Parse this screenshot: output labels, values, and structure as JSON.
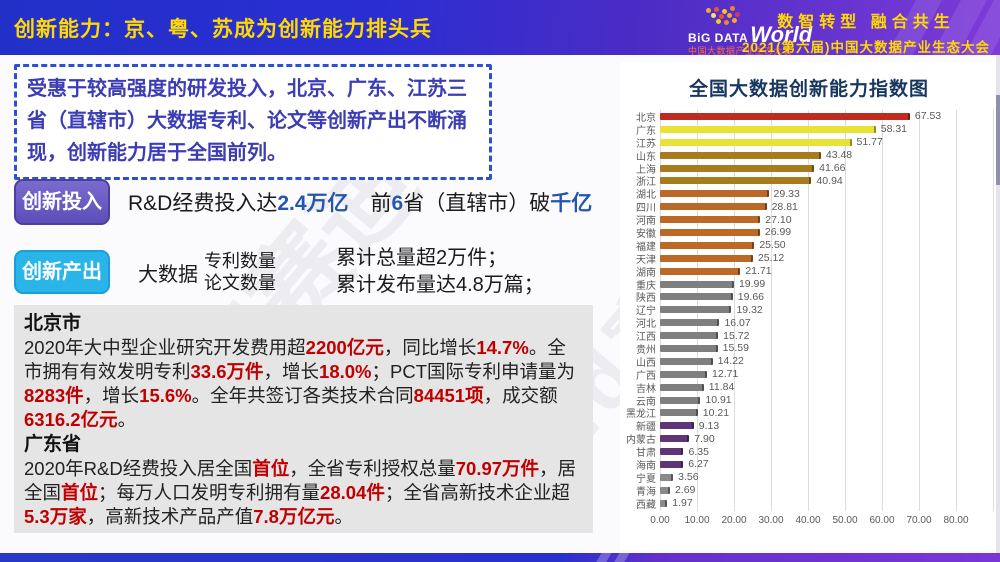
{
  "header": {
    "title": "创新能力：京、粤、苏成为创新能力排头兵",
    "logo_big": "BiG DATA",
    "logo_world": "World",
    "logo_sub": "中国大数据产业生态大会",
    "slogan1": "数智转型 融合共生",
    "slogan2": "2021(第六届)中国大数据产业生态大会"
  },
  "intro": {
    "text": "受惠于较高强度的研发投入，北京、广东、江苏三省（直辖市）大数据专利、论文等创新产出不断涌现，创新能力居于全国前列。"
  },
  "invest": {
    "badge": "创新投入",
    "part1": [
      {
        "t": "R&D经费投入达"
      },
      {
        "t": "2.4万亿",
        "em": true
      }
    ],
    "part2": [
      {
        "t": "前"
      },
      {
        "t": "6",
        "em": true
      },
      {
        "t": "省（直辖市）破"
      },
      {
        "t": "千亿",
        "em": true
      }
    ]
  },
  "output": {
    "badge": "创新产出",
    "label": "大数据",
    "items": [
      "专利数量",
      "论文数量"
    ],
    "results": [
      "累计总量超2万件；",
      "累计发布量达4.8万篇；"
    ]
  },
  "regions": [
    {
      "heading": "北京市",
      "segments": [
        {
          "t": "2020年大中型企业研究开发费用超"
        },
        {
          "t": "2200亿元",
          "em": true
        },
        {
          "t": "，同比增长"
        },
        {
          "t": "14.7%",
          "em": true
        },
        {
          "t": "。全市拥有有效发明专利"
        },
        {
          "t": "33.6万件",
          "em": true
        },
        {
          "t": "，增长"
        },
        {
          "t": "18.0%",
          "em": true
        },
        {
          "t": "；PCT国际专利申请量为"
        },
        {
          "t": "8283件",
          "em": true
        },
        {
          "t": "，增长"
        },
        {
          "t": "15.6%",
          "em": true
        },
        {
          "t": "。全年共签订各类技术合同"
        },
        {
          "t": "84451项",
          "em": true
        },
        {
          "t": "，成交额"
        },
        {
          "t": "6316.2亿元",
          "em": true
        },
        {
          "t": "。"
        }
      ]
    },
    {
      "heading": "广东省",
      "segments": [
        {
          "t": "2020年R&D经费投入居全国"
        },
        {
          "t": "首位",
          "em": true
        },
        {
          "t": "，全省专利授权总量"
        },
        {
          "t": "70.97万件",
          "em": true
        },
        {
          "t": "，居全国"
        },
        {
          "t": "首位",
          "em": true
        },
        {
          "t": "；每万人口发明专利拥有量"
        },
        {
          "t": "28.04件",
          "em": true
        },
        {
          "t": "；全省高新技术企业超"
        },
        {
          "t": "5.3万家",
          "em": true
        },
        {
          "t": "，高新技术产品产值"
        },
        {
          "t": "7.8万亿元",
          "em": true
        },
        {
          "t": "。"
        }
      ]
    }
  ],
  "watermark": "ccid赛迪",
  "colors": {
    "title_yellow": "#ffd902",
    "intro_blue": "#3c3cb4",
    "em_blue": "#2456b0",
    "em_red": "#c00000",
    "badge_purple": "#5b4eb8",
    "badge_cyan": "#29b5e8"
  },
  "chart_data": {
    "type": "bar",
    "orientation": "horizontal",
    "title": "全国大数据创新能力指数图",
    "xlabel": "",
    "ylabel": "",
    "xlim": [
      0,
      80
    ],
    "grid": true,
    "x_ticks": [
      "0.00",
      "10.00",
      "20.00",
      "30.00",
      "40.00",
      "50.00",
      "60.00",
      "70.00",
      "80.00"
    ],
    "categories": [
      "北京",
      "广东",
      "江苏",
      "山东",
      "上海",
      "浙江",
      "湖北",
      "四川",
      "河南",
      "安徽",
      "福建",
      "天津",
      "湖南",
      "重庆",
      "陕西",
      "辽宁",
      "河北",
      "江西",
      "贵州",
      "山西",
      "广西",
      "吉林",
      "云南",
      "黑龙江",
      "新疆",
      "内蒙古",
      "甘肃",
      "海南",
      "宁夏",
      "青海",
      "西藏"
    ],
    "values": [
      67.53,
      58.31,
      51.77,
      43.48,
      41.66,
      40.94,
      29.33,
      28.81,
      27.1,
      26.99,
      25.5,
      25.12,
      21.71,
      19.99,
      19.66,
      19.32,
      16.07,
      15.72,
      15.59,
      14.22,
      12.71,
      11.84,
      10.91,
      10.21,
      9.13,
      7.9,
      6.35,
      6.27,
      3.56,
      2.69,
      1.97
    ],
    "bar_colors": [
      "#bf2b21",
      "#e7e235",
      "#e7e235",
      "#a67c1f",
      "#a67c1f",
      "#a67c1f",
      "#bc6826",
      "#bc6826",
      "#bc6826",
      "#bc6826",
      "#bc6826",
      "#bc6826",
      "#bc6826",
      "#7f7f7f",
      "#7f7f7f",
      "#7f7f7f",
      "#7f7f7f",
      "#7f7f7f",
      "#7f7f7f",
      "#7f7f7f",
      "#7f7f7f",
      "#7f7f7f",
      "#7f7f7f",
      "#7f7f7f",
      "#5e3577",
      "#5e3577",
      "#5e3577",
      "#5e3577",
      "#8a8a8a",
      "#8a8a8a",
      "#8a8a8a"
    ]
  }
}
